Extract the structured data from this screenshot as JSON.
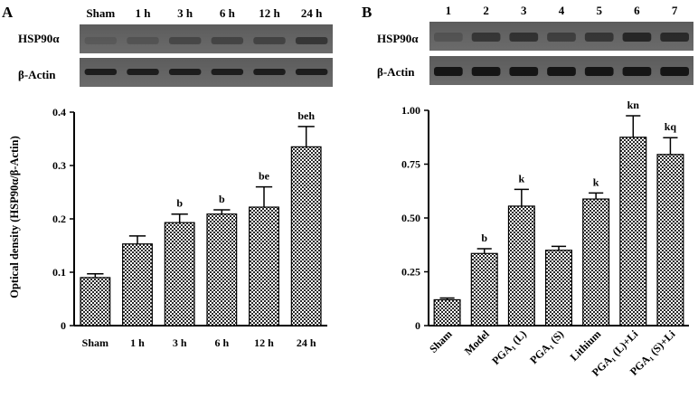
{
  "figure": {
    "blot_labels": {
      "target": "HSP90α",
      "control": "β-Actin"
    }
  },
  "panels": [
    {
      "letter": "A",
      "lane_labels": [
        "Sham",
        "1 h",
        "3 h",
        "6 h",
        "12 h",
        "24 h"
      ]
    },
    {
      "letter": "B",
      "lane_labels": [
        "1",
        "2",
        "3",
        "4",
        "5",
        "6",
        "7"
      ]
    }
  ],
  "chart_data": [
    {
      "type": "bar",
      "panel": "A",
      "ylabel": "Optical density (HSP90α/β-Actin)",
      "xlabel": "",
      "ylim": [
        0,
        0.4
      ],
      "yticks": [
        "0",
        "0.1",
        "0.2",
        "0.3",
        "0.4"
      ],
      "categories": [
        "Sham",
        "1 h",
        "3 h",
        "6 h",
        "12 h",
        "24 h"
      ],
      "values": [
        0.09,
        0.153,
        0.193,
        0.209,
        0.222,
        0.335
      ],
      "errors": [
        0.007,
        0.015,
        0.016,
        0.008,
        0.038,
        0.038
      ],
      "significance": [
        "",
        "",
        "b",
        "b",
        "be",
        "beh"
      ],
      "pattern": "cross-hatched",
      "grid": false
    },
    {
      "type": "bar",
      "panel": "B",
      "ylabel": "",
      "xlabel": "",
      "ylim": [
        0,
        1.0
      ],
      "yticks": [
        "0",
        "0.25",
        "0.50",
        "0.75",
        "1.00"
      ],
      "categories": [
        "Sham",
        "Model",
        "PGA₁ (L)",
        "PGA₁ (S)",
        "Lithium",
        "PGA₁ (L)+Li",
        "PGA₁ (S)+Li"
      ],
      "values": [
        0.12,
        0.335,
        0.555,
        0.35,
        0.588,
        0.875,
        0.795
      ],
      "errors": [
        0.008,
        0.022,
        0.078,
        0.018,
        0.028,
        0.1,
        0.078
      ],
      "significance": [
        "",
        "b",
        "k",
        "",
        "k",
        "kn",
        "kq"
      ],
      "pattern": "cross-hatched",
      "grid": false
    }
  ]
}
